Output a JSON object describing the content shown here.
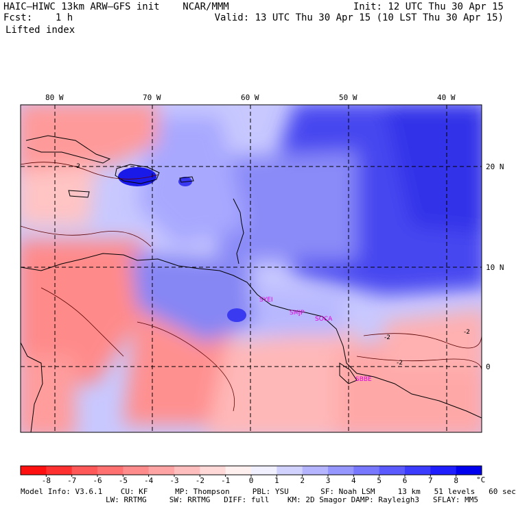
{
  "header": {
    "model": "HAIC–HIWC 13km ARW–GFS init",
    "org": "NCAR/MMM",
    "fcst_label": "Fcst:",
    "fcst_value": "1 h",
    "init": "Init: 12 UTC Thu 30 Apr 15",
    "valid": "Valid: 13 UTC Thu 30 Apr 15 (10 LST Thu 30 Apr 15)",
    "field": "Lifted index"
  },
  "map": {
    "lon_labels": [
      "80 W",
      "70 W",
      "60 W",
      "50 W",
      "40 W"
    ],
    "lat_labels": [
      "20 N",
      "10 N",
      "0"
    ],
    "stations": [
      "SYEI",
      "SMJP",
      "SOCA",
      "SBBE"
    ],
    "contour_label": "-2"
  },
  "colorbar": {
    "labels": [
      "-8",
      "-7",
      "-6",
      "-5",
      "-4",
      "-3",
      "-2",
      "-1",
      "0",
      "1",
      "2",
      "3",
      "4",
      "5",
      "6",
      "7",
      "8"
    ],
    "unit": "°C",
    "colors": [
      "#ff1010",
      "#ff3030",
      "#ff5858",
      "#ff7070",
      "#ff8c8c",
      "#ffa4a4",
      "#ffbebe",
      "#ffd8d8",
      "#fff0f0",
      "#f0f0ff",
      "#d2d2ff",
      "#b4b4ff",
      "#9696ff",
      "#7878ff",
      "#5a5aff",
      "#3c3cff",
      "#1e1eff",
      "#0000ee"
    ]
  },
  "footer": {
    "line1": "Model Info: V3.6.1    CU: KF      MP: Thompson     PBL: YSU       SF: Noah LSM     13 km   51 levels   60 sec",
    "line2": "LW: RRTMG     SW: RRTMG   DIFF: full    KM: 2D Smagor DAMP: Rayleigh3   SFLAY: MM5"
  }
}
